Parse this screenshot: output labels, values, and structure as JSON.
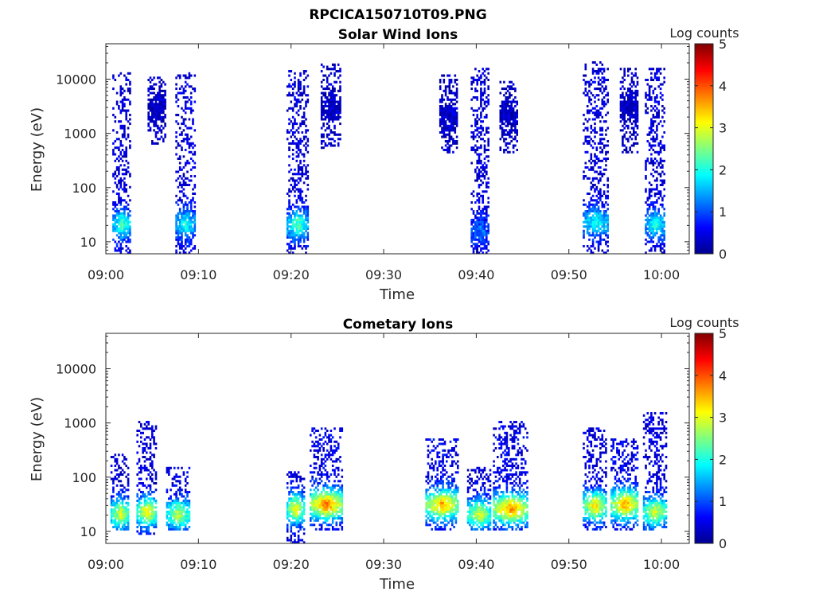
{
  "figure_title": "RPCICA150710T09.PNG",
  "colormap": [
    "#00008f",
    "#0000ff",
    "#0080ff",
    "#00ffff",
    "#80ff80",
    "#ffff00",
    "#ff8000",
    "#ff0000",
    "#800000"
  ],
  "chart_data": [
    {
      "type": "heatmap",
      "title": "Solar Wind Ions",
      "xlabel": "Time",
      "ylabel": "Energy (eV)",
      "x_ticks": [
        "09:00",
        "09:10",
        "09:20",
        "09:30",
        "09:40",
        "09:50",
        "10:00"
      ],
      "y_ticks": [
        "10",
        "100",
        "1000",
        "10000"
      ],
      "y_scale": "log",
      "ylim": [
        6,
        45000
      ],
      "xlim_minutes": [
        0,
        63
      ],
      "colorbar_label": "Log counts",
      "colorbar_ticks": [
        "0",
        "1",
        "2",
        "3",
        "4",
        "5"
      ],
      "clim": [
        0,
        5
      ],
      "clusters": [
        {
          "t_start": 0.7,
          "t_end": 2.7,
          "e_low": 6,
          "e_high": 13000,
          "peak_e": 20,
          "peak_val": 2.2,
          "high_val": 0.4
        },
        {
          "t_start": 4.5,
          "t_end": 6.5,
          "e_low": 600,
          "e_high": 11000,
          "peak_e": 3000,
          "peak_val": 0.3,
          "high_val": 0.3
        },
        {
          "t_start": 7.5,
          "t_end": 9.5,
          "e_low": 6,
          "e_high": 13000,
          "peak_e": 20,
          "peak_val": 2.0,
          "high_val": 0.4
        },
        {
          "t_start": 19.5,
          "t_end": 21.8,
          "e_low": 6,
          "e_high": 14000,
          "peak_e": 20,
          "peak_val": 2.3,
          "high_val": 0.4
        },
        {
          "t_start": 23.2,
          "t_end": 25.3,
          "e_low": 500,
          "e_high": 18000,
          "peak_e": 3000,
          "peak_val": 0.3,
          "high_val": 0.3
        },
        {
          "t_start": 36.0,
          "t_end": 38.0,
          "e_low": 400,
          "e_high": 12000,
          "peak_e": 2000,
          "peak_val": 0.3,
          "high_val": 0.3
        },
        {
          "t_start": 39.4,
          "t_end": 41.3,
          "e_low": 6,
          "e_high": 15000,
          "peak_e": 15,
          "peak_val": 1.2,
          "high_val": 0.4
        },
        {
          "t_start": 42.5,
          "t_end": 44.5,
          "e_low": 400,
          "e_high": 9000,
          "peak_e": 2000,
          "peak_val": 0.3,
          "high_val": 0.3
        },
        {
          "t_start": 51.5,
          "t_end": 54.2,
          "e_low": 6,
          "e_high": 20000,
          "peak_e": 22,
          "peak_val": 2.0,
          "high_val": 0.4
        },
        {
          "t_start": 55.5,
          "t_end": 57.5,
          "e_low": 400,
          "e_high": 15000,
          "peak_e": 3000,
          "peak_val": 0.3,
          "high_val": 0.3
        },
        {
          "t_start": 58.2,
          "t_end": 60.4,
          "e_low": 6,
          "e_high": 16000,
          "peak_e": 20,
          "peak_val": 2.0,
          "high_val": 0.4
        }
      ]
    },
    {
      "type": "heatmap",
      "title": "Cometary Ions",
      "xlabel": "Time",
      "ylabel": "Energy (eV)",
      "x_ticks": [
        "09:00",
        "09:10",
        "09:20",
        "09:30",
        "09:40",
        "09:50",
        "10:00"
      ],
      "y_ticks": [
        "10",
        "100",
        "1000",
        "10000"
      ],
      "y_scale": "log",
      "ylim": [
        6,
        45000
      ],
      "xlim_minutes": [
        0,
        63
      ],
      "colorbar_label": "Log counts",
      "colorbar_ticks": [
        "0",
        "1",
        "2",
        "3",
        "4",
        "5"
      ],
      "clim": [
        0,
        5
      ],
      "clusters": [
        {
          "t_start": 0.5,
          "t_end": 2.5,
          "e_low": 10,
          "e_high": 250,
          "peak_e": 20,
          "peak_val": 3.0,
          "high_val": 0.4
        },
        {
          "t_start": 3.3,
          "t_end": 5.5,
          "e_low": 8,
          "e_high": 1000,
          "peak_e": 22,
          "peak_val": 3.2,
          "high_val": 0.4
        },
        {
          "t_start": 6.5,
          "t_end": 9.0,
          "e_low": 10,
          "e_high": 150,
          "peak_e": 20,
          "peak_val": 2.8,
          "high_val": 0.4
        },
        {
          "t_start": 19.5,
          "t_end": 21.3,
          "e_low": 6,
          "e_high": 120,
          "peak_e": 25,
          "peak_val": 3.2,
          "high_val": 0.4
        },
        {
          "t_start": 22.0,
          "t_end": 25.5,
          "e_low": 10,
          "e_high": 800,
          "peak_e": 30,
          "peak_val": 3.8,
          "high_val": 0.5
        },
        {
          "t_start": 34.5,
          "t_end": 38.0,
          "e_low": 10,
          "e_high": 500,
          "peak_e": 30,
          "peak_val": 3.6,
          "high_val": 0.5
        },
        {
          "t_start": 39.0,
          "t_end": 41.5,
          "e_low": 10,
          "e_high": 150,
          "peak_e": 20,
          "peak_val": 3.0,
          "high_val": 0.4
        },
        {
          "t_start": 41.8,
          "t_end": 45.5,
          "e_low": 10,
          "e_high": 1000,
          "peak_e": 25,
          "peak_val": 3.7,
          "high_val": 0.5
        },
        {
          "t_start": 51.5,
          "t_end": 54.0,
          "e_low": 10,
          "e_high": 800,
          "peak_e": 28,
          "peak_val": 3.3,
          "high_val": 0.4
        },
        {
          "t_start": 54.5,
          "t_end": 57.5,
          "e_low": 10,
          "e_high": 500,
          "peak_e": 30,
          "peak_val": 3.6,
          "high_val": 0.5
        },
        {
          "t_start": 58.0,
          "t_end": 60.5,
          "e_low": 10,
          "e_high": 1500,
          "peak_e": 22,
          "peak_val": 3.0,
          "high_val": 0.4
        }
      ]
    }
  ]
}
